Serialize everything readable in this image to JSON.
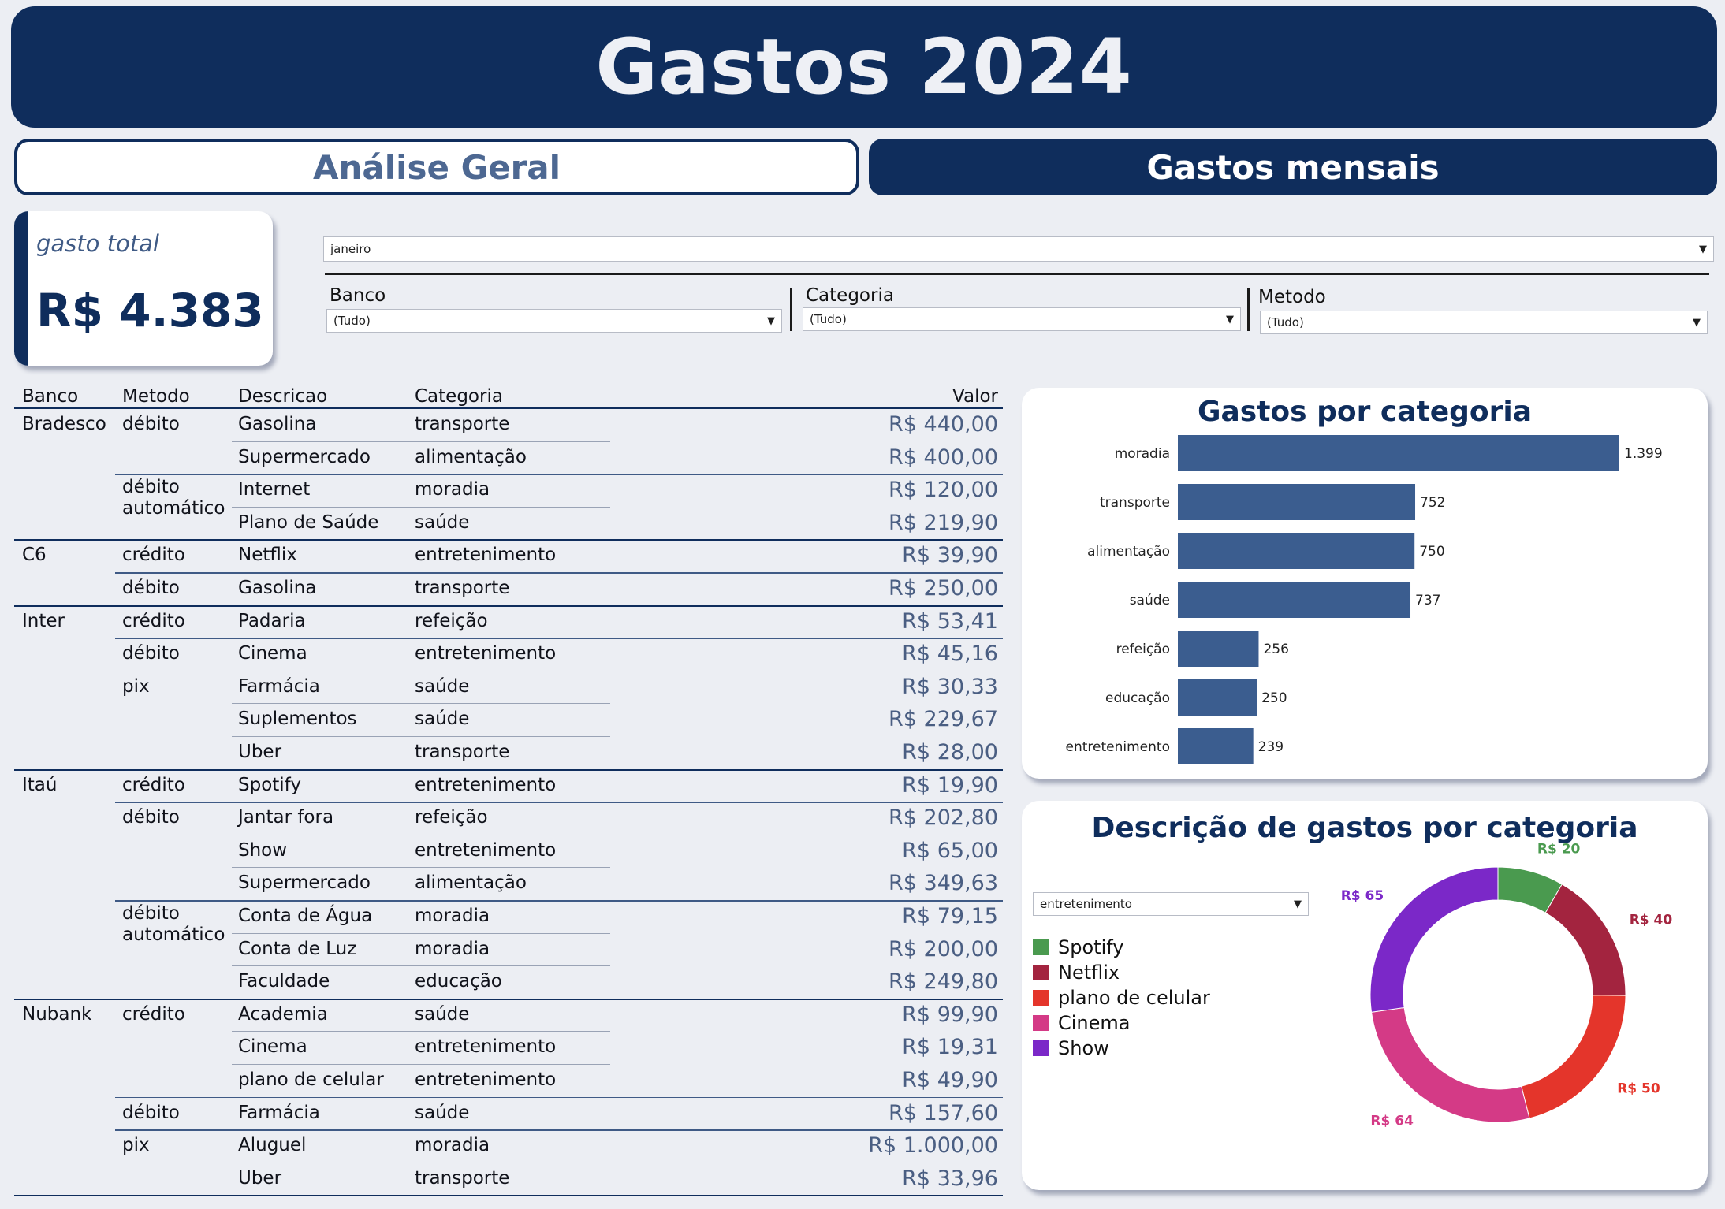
{
  "header": {
    "title": "Gastos 2024"
  },
  "tabs": {
    "analise": "Análise Geral",
    "mensais": "Gastos mensais"
  },
  "kpi": {
    "label": "gasto total",
    "value": "R$ 4.383"
  },
  "filters": {
    "month": "janeiro",
    "banco_label": "Banco",
    "banco_value": "(Tudo)",
    "categoria_label": "Categoria",
    "categoria_value": "(Tudo)",
    "metodo_label": "Metodo",
    "metodo_value": "(Tudo)"
  },
  "table": {
    "headers": {
      "banco": "Banco",
      "metodo": "Metodo",
      "descricao": "Descricao",
      "categoria": "Categoria",
      "valor": "Valor"
    },
    "rows": [
      {
        "banco": "Bradesco",
        "metodo": "débito",
        "descricao": "Gasolina",
        "categoria": "transporte",
        "valor": "R$ 440,00"
      },
      {
        "banco": "",
        "metodo": "",
        "descricao": "Supermercado",
        "categoria": "alimentação",
        "valor": "R$ 400,00"
      },
      {
        "banco": "",
        "metodo": "débito automático",
        "descricao": "Internet",
        "categoria": "moradia",
        "valor": "R$ 120,00"
      },
      {
        "banco": "",
        "metodo": "",
        "descricao": "Plano de Saúde",
        "categoria": "saúde",
        "valor": "R$ 219,90"
      },
      {
        "banco": "C6",
        "metodo": "crédito",
        "descricao": "Netflix",
        "categoria": "entretenimento",
        "valor": "R$ 39,90"
      },
      {
        "banco": "",
        "metodo": "débito",
        "descricao": "Gasolina",
        "categoria": "transporte",
        "valor": "R$ 250,00"
      },
      {
        "banco": "Inter",
        "metodo": "crédito",
        "descricao": "Padaria",
        "categoria": "refeição",
        "valor": "R$ 53,41"
      },
      {
        "banco": "",
        "metodo": "débito",
        "descricao": "Cinema",
        "categoria": "entretenimento",
        "valor": "R$ 45,16"
      },
      {
        "banco": "",
        "metodo": "pix",
        "descricao": "Farmácia",
        "categoria": "saúde",
        "valor": "R$ 30,33"
      },
      {
        "banco": "",
        "metodo": "",
        "descricao": "Suplementos",
        "categoria": "saúde",
        "valor": "R$ 229,67"
      },
      {
        "banco": "",
        "metodo": "",
        "descricao": "Uber",
        "categoria": "transporte",
        "valor": "R$ 28,00"
      },
      {
        "banco": "Itaú",
        "metodo": "crédito",
        "descricao": "Spotify",
        "categoria": "entretenimento",
        "valor": "R$ 19,90"
      },
      {
        "banco": "",
        "metodo": "débito",
        "descricao": "Jantar fora",
        "categoria": "refeição",
        "valor": "R$ 202,80"
      },
      {
        "banco": "",
        "metodo": "",
        "descricao": "Show",
        "categoria": "entretenimento",
        "valor": "R$ 65,00"
      },
      {
        "banco": "",
        "metodo": "",
        "descricao": "Supermercado",
        "categoria": "alimentação",
        "valor": "R$ 349,63"
      },
      {
        "banco": "",
        "metodo": "débito automático",
        "descricao": "Conta de Água",
        "categoria": "moradia",
        "valor": "R$ 79,15"
      },
      {
        "banco": "",
        "metodo": "",
        "descricao": "Conta de Luz",
        "categoria": "moradia",
        "valor": "R$ 200,00"
      },
      {
        "banco": "",
        "metodo": "",
        "descricao": "Faculdade",
        "categoria": "educação",
        "valor": "R$ 249,80"
      },
      {
        "banco": "Nubank",
        "metodo": "crédito",
        "descricao": "Academia",
        "categoria": "saúde",
        "valor": "R$ 99,90"
      },
      {
        "banco": "",
        "metodo": "",
        "descricao": "Cinema",
        "categoria": "entretenimento",
        "valor": "R$ 19,31"
      },
      {
        "banco": "",
        "metodo": "",
        "descricao": "plano de celular",
        "categoria": "entretenimento",
        "valor": "R$ 49,90"
      },
      {
        "banco": "",
        "metodo": "débito",
        "descricao": "Farmácia",
        "categoria": "saúde",
        "valor": "R$ 157,60"
      },
      {
        "banco": "",
        "metodo": "pix",
        "descricao": "Aluguel",
        "categoria": "moradia",
        "valor": "R$ 1.000,00"
      },
      {
        "banco": "",
        "metodo": "",
        "descricao": "Uber",
        "categoria": "transporte",
        "valor": "R$ 33,96"
      }
    ]
  },
  "colors": {
    "primary": "#0f2d5c",
    "bar": "#3b5d8f",
    "zebra": "#eceef3"
  },
  "chart_data": [
    {
      "type": "bar",
      "orientation": "horizontal",
      "title": "Gastos por categoria",
      "categories": [
        "moradia",
        "transporte",
        "alimentação",
        "saúde",
        "refeição",
        "educação",
        "entretenimento"
      ],
      "values": [
        1399,
        752,
        750,
        737,
        256,
        250,
        239
      ],
      "labels": [
        "1.399",
        "752",
        "750",
        "737",
        "256",
        "250",
        "239"
      ],
      "color": "#3b5d8f"
    },
    {
      "type": "pie",
      "variant": "donut",
      "title": "Descrição de gastos por categoria",
      "filter_value": "entretenimento",
      "categories": [
        "Spotify",
        "Netflix",
        "plano de celular",
        "Cinema",
        "Show"
      ],
      "values": [
        20,
        40,
        50,
        64,
        65
      ],
      "labels": [
        "R$ 20",
        "R$ 40",
        "R$ 50",
        "R$ 64",
        "R$ 65"
      ],
      "colors": [
        "#4a9a4f",
        "#a3243f",
        "#e4352b",
        "#d43a86",
        "#7b28c8"
      ]
    }
  ]
}
